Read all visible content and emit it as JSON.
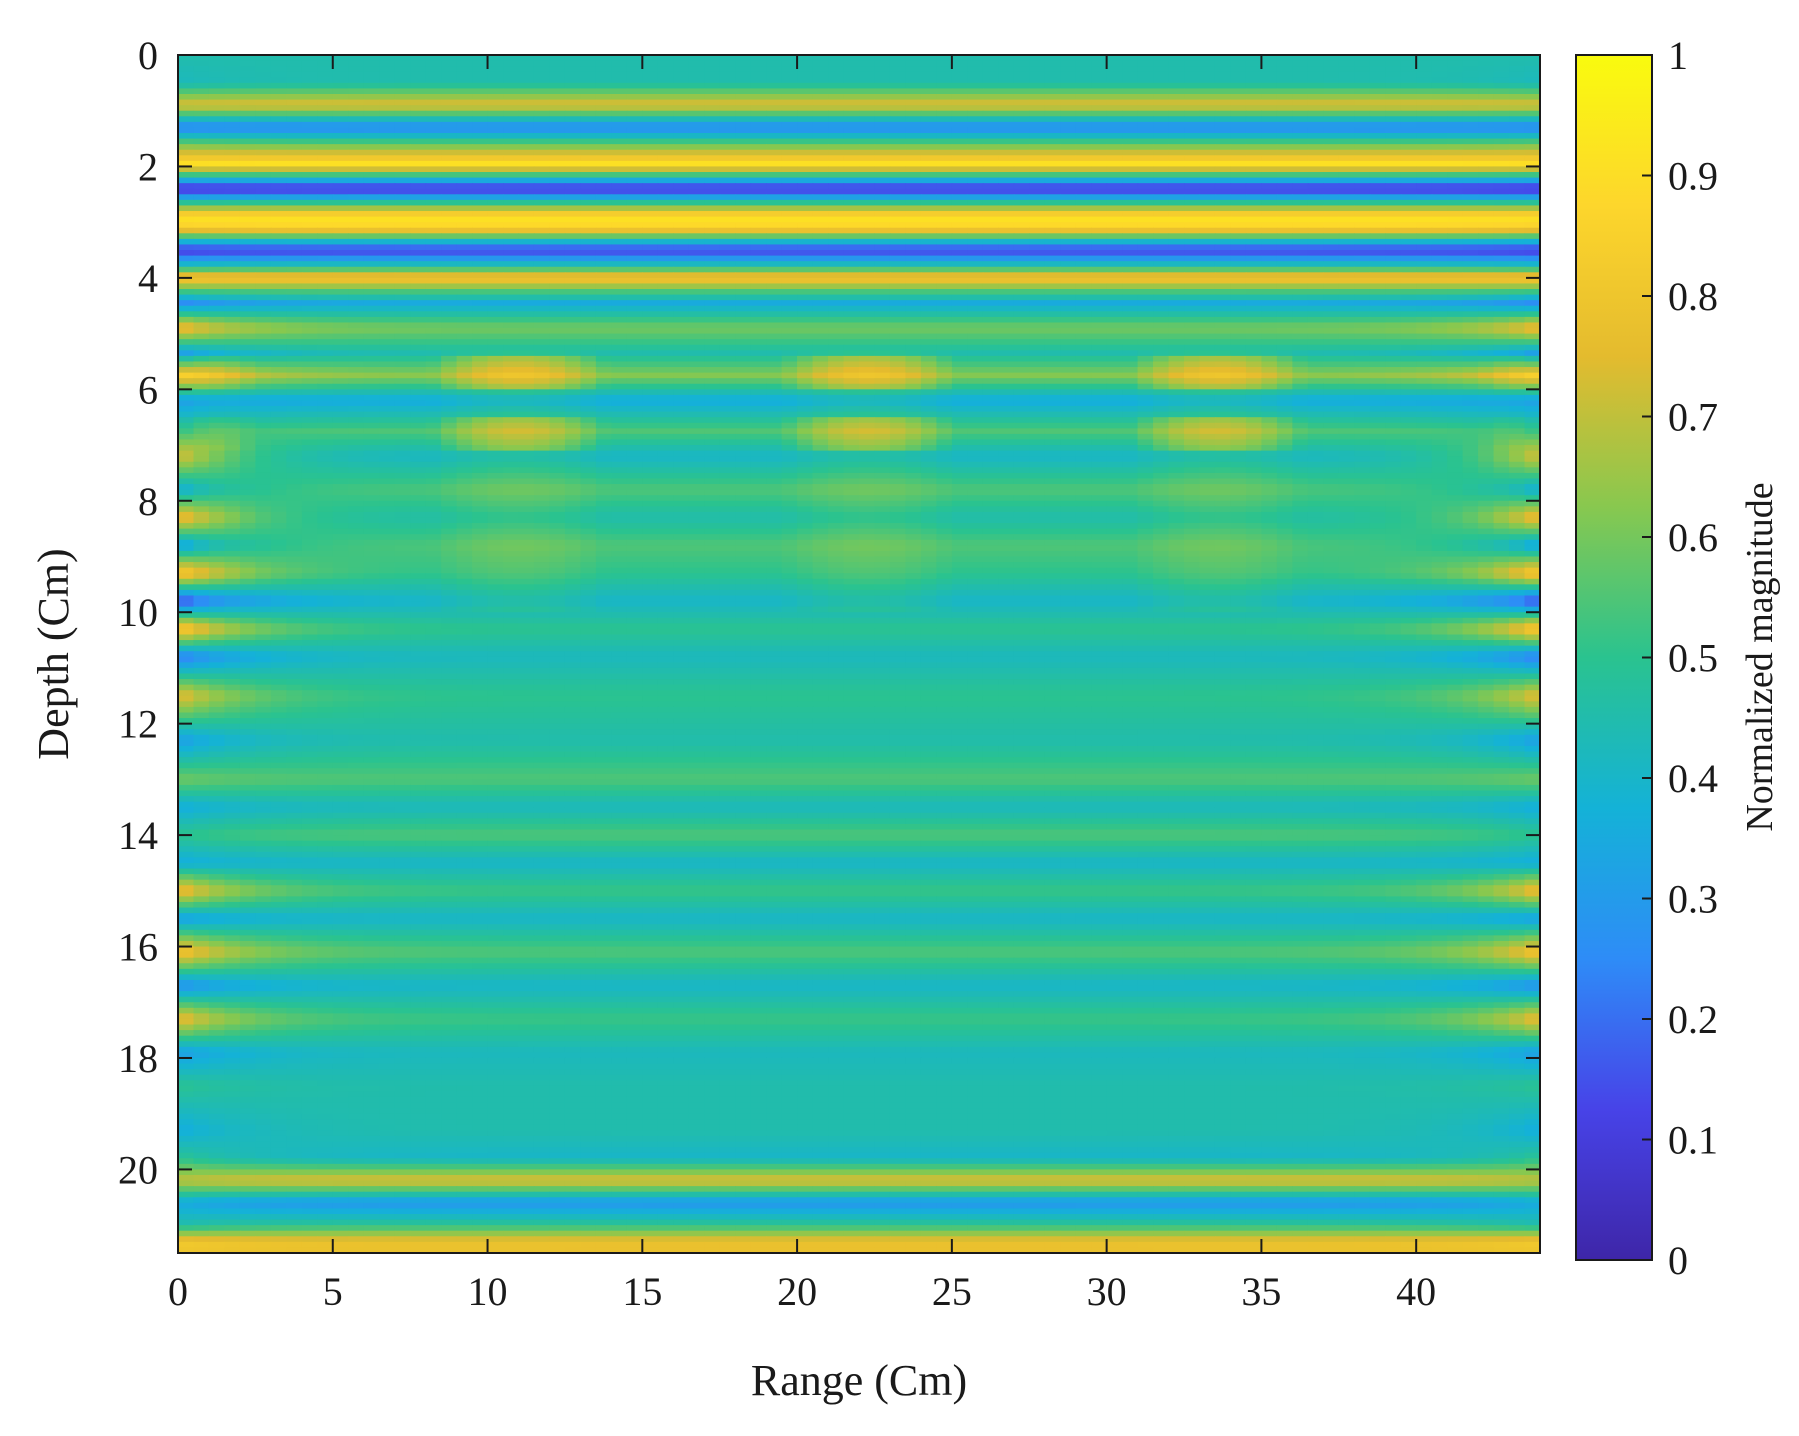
{
  "chart_data": {
    "type": "heatmap",
    "title": "",
    "xlabel": "Range (Cm)",
    "ylabel": "Depth (Cm)",
    "xlim": [
      0,
      44
    ],
    "ylim": [
      0,
      21.5
    ],
    "y_reversed": true,
    "xticks": [
      0,
      5,
      10,
      15,
      20,
      25,
      30,
      35,
      40
    ],
    "yticks": [
      0,
      2,
      4,
      6,
      8,
      10,
      12,
      14,
      16,
      18,
      20
    ],
    "colorbar": {
      "label": "Normalized magnitude",
      "range": [
        0,
        1
      ],
      "ticks": [
        0,
        0.1,
        0.2,
        0.3,
        0.4,
        0.5,
        0.6,
        0.7,
        0.8,
        0.9,
        1
      ],
      "tick_labels": [
        "0",
        "0.1",
        "0.2",
        "0.3",
        "0.4",
        "0.5",
        "0.6",
        "0.7",
        "0.8",
        "0.9",
        "1"
      ],
      "colormap": "parula",
      "colors": [
        "#3e26a8",
        "#4743e8",
        "#2e8cf7",
        "#14b2d7",
        "#2ac38f",
        "#88c84f",
        "#e4bb2e",
        "#fdd62c",
        "#f9fb0e"
      ]
    },
    "depth_profile": {
      "depths": [
        0.0,
        0.5,
        0.9,
        1.3,
        1.6,
        1.95,
        2.4,
        2.9,
        3.1,
        3.5,
        3.8,
        4.0,
        4.45,
        4.9,
        5.35,
        5.75,
        6.2,
        6.75,
        7.2,
        7.8,
        8.3,
        8.8,
        9.3,
        9.8,
        10.3,
        10.8,
        11.5,
        12.3,
        13.0,
        13.5,
        14.0,
        14.5,
        15.0,
        15.5,
        16.1,
        16.7,
        17.3,
        17.9,
        18.5,
        19.3,
        19.8,
        20.2,
        20.6,
        21.0,
        21.3,
        21.5
      ],
      "edge_magnitude": [
        0.45,
        0.42,
        0.75,
        0.22,
        0.6,
        0.9,
        0.05,
        0.92,
        0.85,
        0.08,
        0.45,
        0.85,
        0.25,
        0.82,
        0.3,
        0.85,
        0.3,
        0.5,
        0.75,
        0.35,
        0.82,
        0.3,
        0.88,
        0.1,
        0.9,
        0.2,
        0.78,
        0.3,
        0.6,
        0.35,
        0.5,
        0.35,
        0.82,
        0.3,
        0.85,
        0.25,
        0.8,
        0.3,
        0.5,
        0.35,
        0.5,
        0.7,
        0.35,
        0.45,
        0.82,
        0.8
      ],
      "center_magnitude": [
        0.45,
        0.48,
        0.76,
        0.25,
        0.55,
        0.92,
        0.08,
        0.92,
        0.9,
        0.12,
        0.5,
        0.82,
        0.35,
        0.6,
        0.45,
        0.62,
        0.35,
        0.55,
        0.4,
        0.55,
        0.45,
        0.55,
        0.5,
        0.4,
        0.5,
        0.42,
        0.5,
        0.45,
        0.55,
        0.42,
        0.55,
        0.4,
        0.52,
        0.4,
        0.55,
        0.4,
        0.52,
        0.42,
        0.45,
        0.45,
        0.4,
        0.75,
        0.28,
        0.5,
        0.78,
        0.78
      ]
    }
  }
}
